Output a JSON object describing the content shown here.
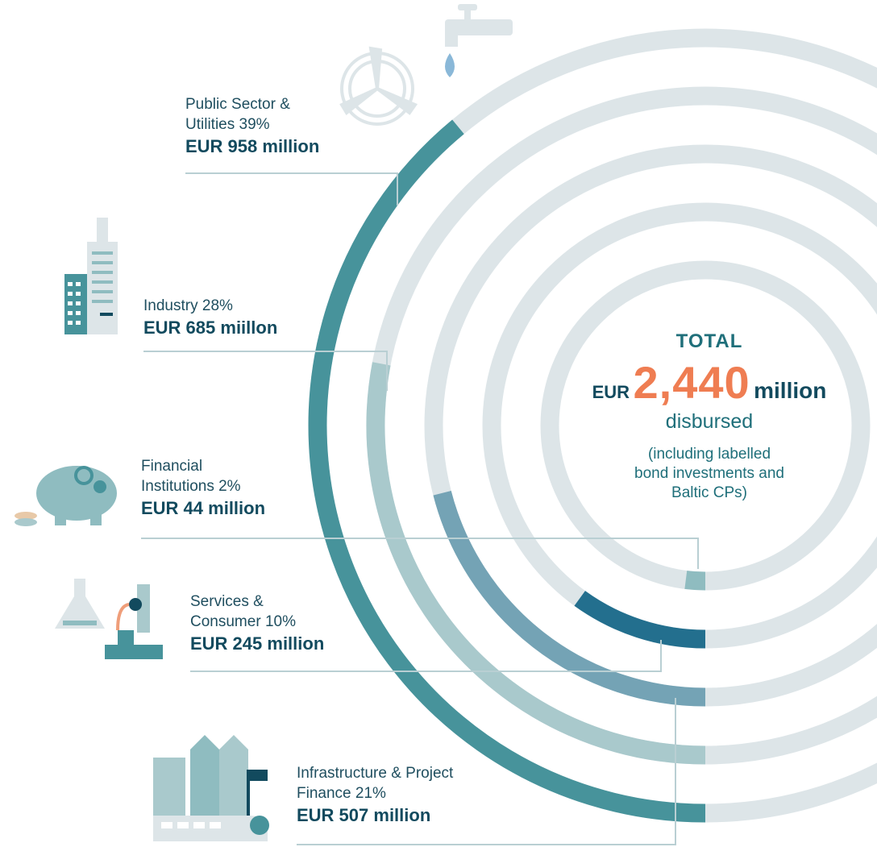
{
  "chart_data": {
    "type": "radial-bar",
    "categories": [
      "Public Sector & Utilities",
      "Industry",
      "Infrastructure & Project Finance",
      "Services & Consumer",
      "Financial Institutions"
    ],
    "values": [
      39,
      28,
      21,
      10,
      2
    ],
    "value_labels": [
      "39%",
      "28%",
      "21%",
      "10%",
      "2%"
    ],
    "amount_labels": [
      "EUR 958 million",
      "EUR 685 miillon",
      "EUR 507 million",
      "EUR 245 million",
      "EUR 44 million"
    ],
    "colors": [
      "#47939b",
      "#a9c9cc",
      "#74a3b5",
      "#236f8e",
      "#8fbcc0"
    ],
    "track_color": "#dde5e8",
    "ylim": [
      0,
      100
    ],
    "total": {
      "heading": "TOTAL",
      "prefix": "EUR",
      "amount": "2,440",
      "suffix": "million",
      "caption": "disbursed",
      "note": "(including labelled bond investments and Baltic CPs)"
    }
  }
}
